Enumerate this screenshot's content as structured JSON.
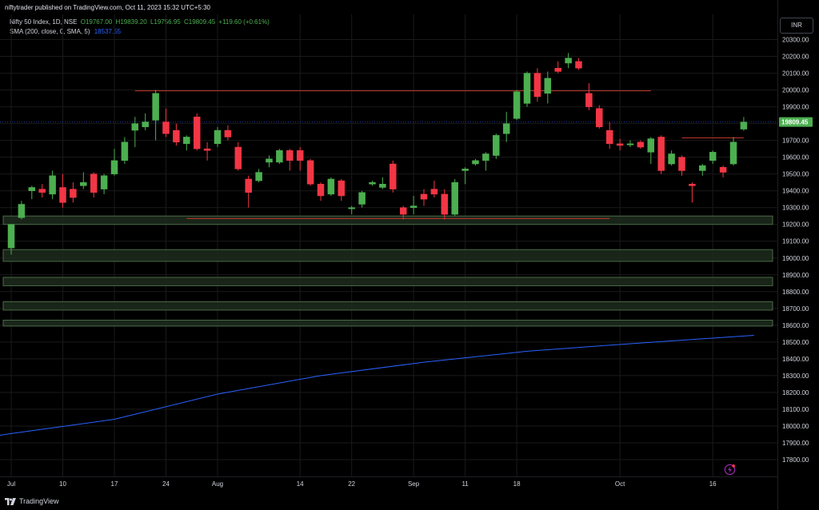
{
  "header": {
    "publisher": "niftytrader published on TradingView.com, Oct 11, 2023 15:32 UTC+5:30"
  },
  "legend": {
    "title": "Nifty 50 Index, 1D, NSE",
    "open": "O19767.00",
    "high": "H19839.20",
    "low": "L19756.95",
    "close": "C19809.45",
    "change": "+119.60 (+0.61%)",
    "sma_label": "SMA (200, close, 0, SMA, 5)",
    "sma_value": "18537.55"
  },
  "currency": "INR",
  "footer": {
    "brand": "TradingView"
  },
  "colors": {
    "up": "#4caf50",
    "down": "#f23645",
    "sma": "#2962ff",
    "resistance_line": "#c0392b",
    "zone_fill": "#1d2b1d",
    "zone_border": "#4a6a46",
    "grid": "#1a1a1a",
    "last_price_bg": "#4caf50"
  },
  "chart_data": {
    "type": "candlestick",
    "title": "Nifty 50 Index, 1D, NSE",
    "ylim": [
      17700,
      20450
    ],
    "y_ticks": [
      17800,
      17900,
      18000,
      18100,
      18200,
      18300,
      18400,
      18500,
      18600,
      18700,
      18800,
      18900,
      19000,
      19100,
      19200,
      19300,
      19400,
      19500,
      19600,
      19700,
      19800,
      19900,
      20000,
      20100,
      20200,
      20300
    ],
    "x_tick_labels": [
      {
        "label": "Jul",
        "index": 0
      },
      {
        "label": "10",
        "index": 5
      },
      {
        "label": "17",
        "index": 10
      },
      {
        "label": "24",
        "index": 15
      },
      {
        "label": "Aug",
        "index": 20
      },
      {
        "label": "14",
        "index": 28
      },
      {
        "label": "22",
        "index": 33
      },
      {
        "label": "Sep",
        "index": 39
      },
      {
        "label": "11",
        "index": 44
      },
      {
        "label": "18",
        "index": 49
      },
      {
        "label": "Oct",
        "index": 59
      },
      {
        "label": "16",
        "index": 68
      }
    ],
    "candles": [
      {
        "o": 19060,
        "h": 19200,
        "l": 19020,
        "c": 19200
      },
      {
        "o": 19240,
        "h": 19340,
        "l": 19230,
        "c": 19320
      },
      {
        "o": 19400,
        "h": 19430,
        "l": 19350,
        "c": 19420
      },
      {
        "o": 19410,
        "h": 19440,
        "l": 19360,
        "c": 19390
      },
      {
        "o": 19380,
        "h": 19520,
        "l": 19350,
        "c": 19490
      },
      {
        "o": 19420,
        "h": 19500,
        "l": 19300,
        "c": 19330
      },
      {
        "o": 19410,
        "h": 19450,
        "l": 19330,
        "c": 19360
      },
      {
        "o": 19430,
        "h": 19510,
        "l": 19410,
        "c": 19450
      },
      {
        "o": 19500,
        "h": 19510,
        "l": 19360,
        "c": 19390
      },
      {
        "o": 19410,
        "h": 19500,
        "l": 19380,
        "c": 19490
      },
      {
        "o": 19500,
        "h": 19650,
        "l": 19490,
        "c": 19580
      },
      {
        "o": 19580,
        "h": 19720,
        "l": 19560,
        "c": 19690
      },
      {
        "o": 19760,
        "h": 19840,
        "l": 19660,
        "c": 19800
      },
      {
        "o": 19780,
        "h": 19860,
        "l": 19760,
        "c": 19810
      },
      {
        "o": 19820,
        "h": 20000,
        "l": 19700,
        "c": 19980
      },
      {
        "o": 19810,
        "h": 19890,
        "l": 19720,
        "c": 19740
      },
      {
        "o": 19760,
        "h": 19800,
        "l": 19670,
        "c": 19690
      },
      {
        "o": 19680,
        "h": 19730,
        "l": 19640,
        "c": 19720
      },
      {
        "o": 19840,
        "h": 19860,
        "l": 19640,
        "c": 19650
      },
      {
        "o": 19650,
        "h": 19690,
        "l": 19580,
        "c": 19640
      },
      {
        "o": 19680,
        "h": 19780,
        "l": 19660,
        "c": 19760
      },
      {
        "o": 19760,
        "h": 19790,
        "l": 19700,
        "c": 19720
      },
      {
        "o": 19660,
        "h": 19690,
        "l": 19520,
        "c": 19530
      },
      {
        "o": 19470,
        "h": 19490,
        "l": 19300,
        "c": 19390
      },
      {
        "o": 19460,
        "h": 19530,
        "l": 19450,
        "c": 19510
      },
      {
        "o": 19570,
        "h": 19610,
        "l": 19540,
        "c": 19590
      },
      {
        "o": 19570,
        "h": 19650,
        "l": 19560,
        "c": 19640
      },
      {
        "o": 19640,
        "h": 19650,
        "l": 19520,
        "c": 19580
      },
      {
        "o": 19640,
        "h": 19660,
        "l": 19520,
        "c": 19580
      },
      {
        "o": 19580,
        "h": 19590,
        "l": 19430,
        "c": 19440
      },
      {
        "o": 19440,
        "h": 19450,
        "l": 19340,
        "c": 19370
      },
      {
        "o": 19380,
        "h": 19480,
        "l": 19370,
        "c": 19470
      },
      {
        "o": 19460,
        "h": 19470,
        "l": 19340,
        "c": 19370
      },
      {
        "o": 19300,
        "h": 19310,
        "l": 19260,
        "c": 19300
      },
      {
        "o": 19320,
        "h": 19400,
        "l": 19300,
        "c": 19390
      },
      {
        "o": 19440,
        "h": 19460,
        "l": 19430,
        "c": 19450
      },
      {
        "o": 19420,
        "h": 19480,
        "l": 19410,
        "c": 19440
      },
      {
        "o": 19560,
        "h": 19580,
        "l": 19390,
        "c": 19410
      },
      {
        "o": 19300,
        "h": 19310,
        "l": 19230,
        "c": 19260
      },
      {
        "o": 19300,
        "h": 19370,
        "l": 19260,
        "c": 19310
      },
      {
        "o": 19380,
        "h": 19410,
        "l": 19310,
        "c": 19350
      },
      {
        "o": 19410,
        "h": 19460,
        "l": 19360,
        "c": 19380
      },
      {
        "o": 19380,
        "h": 19410,
        "l": 19230,
        "c": 19260
      },
      {
        "o": 19260,
        "h": 19470,
        "l": 19250,
        "c": 19450
      },
      {
        "o": 19520,
        "h": 19540,
        "l": 19440,
        "c": 19530
      },
      {
        "o": 19560,
        "h": 19590,
        "l": 19550,
        "c": 19580
      },
      {
        "o": 19580,
        "h": 19630,
        "l": 19520,
        "c": 19620
      },
      {
        "o": 19610,
        "h": 19740,
        "l": 19590,
        "c": 19730
      },
      {
        "o": 19740,
        "h": 19870,
        "l": 19690,
        "c": 19800
      },
      {
        "o": 19830,
        "h": 20000,
        "l": 19820,
        "c": 19990
      },
      {
        "o": 19920,
        "h": 20110,
        "l": 19900,
        "c": 20100
      },
      {
        "o": 20100,
        "h": 20130,
        "l": 19930,
        "c": 19960
      },
      {
        "o": 19980,
        "h": 20110,
        "l": 19920,
        "c": 20070
      },
      {
        "o": 20130,
        "h": 20170,
        "l": 20100,
        "c": 20110
      },
      {
        "o": 20160,
        "h": 20220,
        "l": 20130,
        "c": 20190
      },
      {
        "o": 20170,
        "h": 20190,
        "l": 20120,
        "c": 20130
      },
      {
        "o": 19980,
        "h": 20040,
        "l": 19880,
        "c": 19900
      },
      {
        "o": 19890,
        "h": 19910,
        "l": 19770,
        "c": 19780
      },
      {
        "o": 19760,
        "h": 19810,
        "l": 19650,
        "c": 19680
      },
      {
        "o": 19680,
        "h": 19710,
        "l": 19640,
        "c": 19670
      },
      {
        "o": 19680,
        "h": 19700,
        "l": 19660,
        "c": 19680
      },
      {
        "o": 19690,
        "h": 19700,
        "l": 19650,
        "c": 19660
      },
      {
        "o": 19630,
        "h": 19720,
        "l": 19560,
        "c": 19710
      },
      {
        "o": 19720,
        "h": 19730,
        "l": 19500,
        "c": 19520
      },
      {
        "o": 19560,
        "h": 19640,
        "l": 19550,
        "c": 19620
      },
      {
        "o": 19600,
        "h": 19610,
        "l": 19490,
        "c": 19520
      },
      {
        "o": 19440,
        "h": 19450,
        "l": 19330,
        "c": 19430
      },
      {
        "o": 19520,
        "h": 19560,
        "l": 19490,
        "c": 19550
      },
      {
        "o": 19580,
        "h": 19640,
        "l": 19560,
        "c": 19630
      },
      {
        "o": 19540,
        "h": 19550,
        "l": 19480,
        "c": 19510
      },
      {
        "o": 19560,
        "h": 19720,
        "l": 19550,
        "c": 19690
      },
      {
        "o": 19767,
        "h": 19839.2,
        "l": 19756.95,
        "c": 19809.45
      }
    ],
    "sma": [
      {
        "index": 0,
        "value": 17955
      },
      {
        "index": 10,
        "value": 18040
      },
      {
        "index": 20,
        "value": 18190
      },
      {
        "index": 30,
        "value": 18300
      },
      {
        "index": 40,
        "value": 18380
      },
      {
        "index": 50,
        "value": 18445
      },
      {
        "index": 60,
        "value": 18490
      },
      {
        "index": 72,
        "value": 18540
      }
    ],
    "last_price": "19809.45",
    "resistance_lines": [
      {
        "from_index": 12,
        "to_index": 62,
        "value": 19995
      },
      {
        "from_index": 17,
        "to_index": 58,
        "value": 19235
      },
      {
        "from_index": 65,
        "to_index": 71,
        "value": 19715
      }
    ],
    "support_zones": [
      {
        "low": 19200,
        "high": 19250
      },
      {
        "low": 18980,
        "high": 19050
      },
      {
        "low": 18835,
        "high": 18885
      },
      {
        "low": 18690,
        "high": 18740
      },
      {
        "low": 18595,
        "high": 18630
      }
    ]
  }
}
